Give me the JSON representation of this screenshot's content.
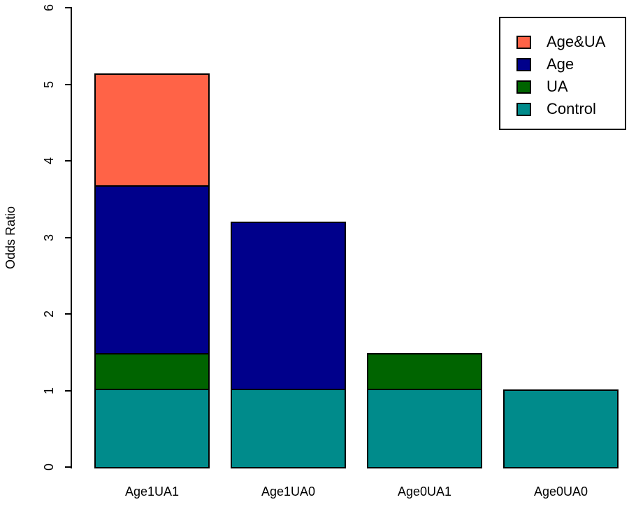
{
  "figure": {
    "background": "#ffffff",
    "axis_color": "#000000",
    "bar_border_color": "#000000"
  },
  "chart_data": {
    "type": "bar",
    "stacked": true,
    "title": "",
    "xlabel": "",
    "ylabel": "Odds Ratio",
    "categories": [
      "Age1UA1",
      "Age1UA0",
      "Age0UA1",
      "Age0UA0"
    ],
    "series": [
      {
        "name": "Control",
        "color": "#008B8B",
        "values": [
          1.0,
          1.0,
          1.0,
          1.0
        ]
      },
      {
        "name": "UA",
        "color": "#006400",
        "values": [
          0.47,
          0,
          0.47,
          0
        ]
      },
      {
        "name": "Age",
        "color": "#00008B",
        "values": [
          2.19,
          2.19,
          0,
          0
        ]
      },
      {
        "name": "Age&UA",
        "color": "#FF6347",
        "values": [
          1.46,
          0,
          0,
          0
        ]
      }
    ],
    "bar_totals": [
      5.12,
      3.19,
      1.47,
      1.0
    ],
    "ylim": [
      0,
      6
    ],
    "yticks": [
      "0",
      "1",
      "2",
      "3",
      "4",
      "5",
      "6"
    ],
    "grid": false,
    "legend": {
      "position": "top-right",
      "entries": [
        {
          "label": "Age&UA",
          "color": "#FF6347"
        },
        {
          "label": "Age",
          "color": "#00008B"
        },
        {
          "label": "UA",
          "color": "#006400"
        },
        {
          "label": "Control",
          "color": "#008B8B"
        }
      ]
    }
  }
}
